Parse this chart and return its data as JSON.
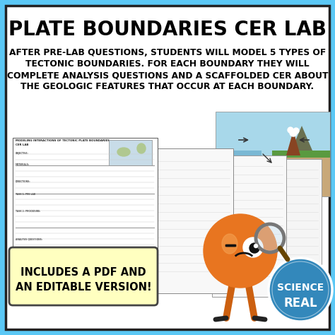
{
  "bg_outer": "#5bc8f5",
  "bg_inner": "#ffffff",
  "title": "PLATE BOUNDARIES CER LAB",
  "title_color": "#000000",
  "title_fontsize": 20,
  "subtitle_lines": [
    "AFTER PRE-LAB QUESTIONS, STUDENTS WILL MODEL 5 TYPES OF",
    "TECTONIC BOUNDARIES. FOR EACH BOUNDARY THEY WILL",
    "COMPLETE ANALYSIS QUESTIONS AND A SCAFFOLDED CER ABOUT",
    "THE GEOLOGIC FEATURES THAT OCCUR AT EACH BOUNDARY."
  ],
  "subtitle_color": "#000000",
  "subtitle_fontsize": 8.8,
  "badge_text": "INCLUDES A PDF AND\nAN EDITABLE VERSION!",
  "badge_bg": "#ffffc0",
  "badge_text_color": "#000000",
  "badge_fontsize": 10.5,
  "science_real_bg": "#3388bb",
  "science_real_text1": "SCIENCE",
  "science_real_text2": "REAL",
  "border_color": "#222222",
  "border_lw": 2.5
}
